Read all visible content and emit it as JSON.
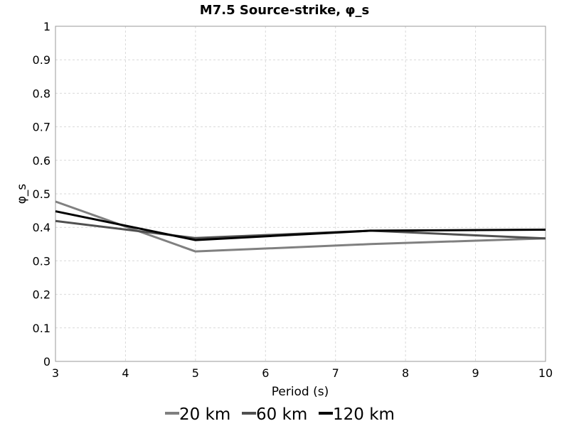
{
  "chart_data": {
    "type": "line",
    "title": "M7.5 Source-strike, φ_s",
    "xlabel": "Period (s)",
    "ylabel": "φ_s",
    "xlim": [
      3,
      10
    ],
    "ylim": [
      0,
      1
    ],
    "xticks": [
      3,
      4,
      5,
      6,
      7,
      8,
      9,
      10
    ],
    "yticks": [
      0,
      0.1,
      0.2,
      0.3,
      0.4,
      0.5,
      0.6,
      0.7,
      0.8,
      0.9,
      1
    ],
    "grid": true,
    "legend_position": "bottom",
    "series": [
      {
        "name": "20 km",
        "color": "#808080",
        "x": [
          3,
          5,
          7.5,
          10
        ],
        "y": [
          0.477,
          0.328,
          0.35,
          0.367
        ]
      },
      {
        "name": "60 km",
        "color": "#505050",
        "x": [
          3,
          5,
          7.5,
          10
        ],
        "y": [
          0.419,
          0.368,
          0.39,
          0.367
        ]
      },
      {
        "name": "120 km",
        "color": "#000000",
        "x": [
          3,
          5,
          7.5,
          10
        ],
        "y": [
          0.448,
          0.362,
          0.39,
          0.393
        ]
      }
    ]
  }
}
